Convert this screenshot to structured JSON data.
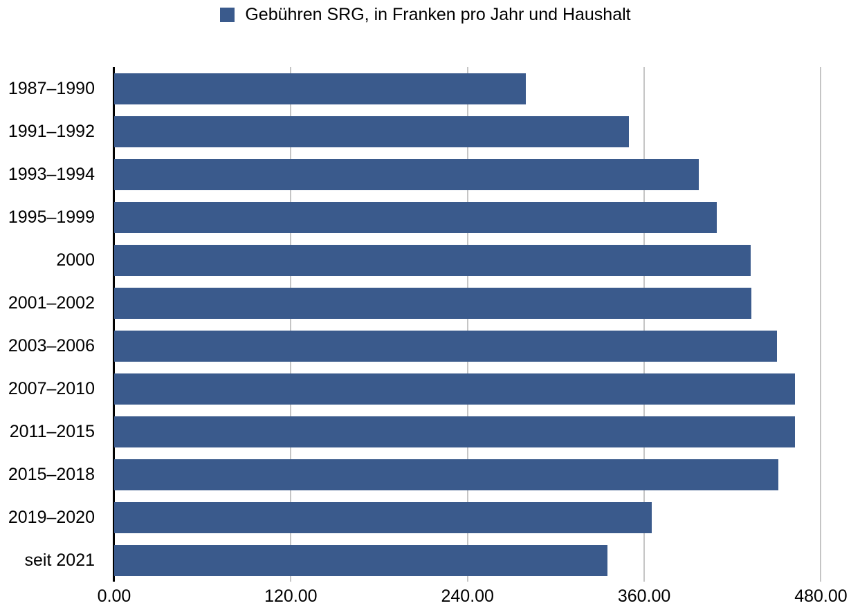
{
  "chart_data": {
    "type": "bar",
    "orientation": "horizontal",
    "series_name": "Gebühren SRG, in Franken pro Jahr und Haushalt",
    "categories": [
      "1987–1990",
      "1991–1992",
      "1993–1994",
      "1995–1999",
      "2000",
      "2001–2002",
      "2003–2006",
      "2007–2010",
      "2011–2015",
      "2015–2018",
      "2019–2020",
      "seit 2021"
    ],
    "values": [
      279.6,
      349.8,
      397.2,
      409.2,
      432.4,
      432.8,
      450.0,
      462.4,
      462.4,
      451.1,
      365.0,
      335.0
    ],
    "xlim": [
      0,
      500
    ],
    "x_tick_values": [
      0,
      120,
      240,
      360,
      480
    ],
    "x_tick_labels": [
      "0.00",
      "120.00",
      "240.00",
      "360.00",
      "480.00"
    ],
    "grid": true,
    "legend_position": "top",
    "colors": {
      "bar": "#3A5A8C",
      "gridline": "#C5C5C5",
      "axis": "#000000",
      "text": "#000000",
      "background": "#FFFFFF"
    }
  }
}
